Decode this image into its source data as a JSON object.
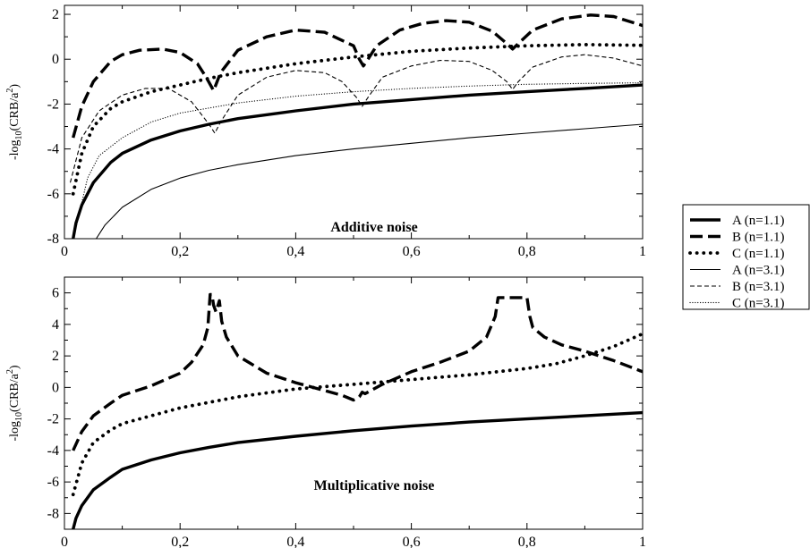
{
  "chart_data": [
    {
      "type": "line",
      "ylabel_prefix": "-log",
      "ylabel_sub": "10",
      "ylabel_mid": "(CRB/a",
      "ylabel_sup": "2",
      "ylabel_suffix": ")",
      "annotation": "Additive noise",
      "xlim": [
        0,
        1
      ],
      "ylim": [
        -8,
        2.4
      ],
      "x_ticks": [
        0,
        0.2,
        0.4,
        0.6,
        0.8,
        1
      ],
      "x_tick_labels": [
        "0",
        "0,2",
        "0,4",
        "0,6",
        "0,8",
        "1"
      ],
      "y_ticks": [
        -8,
        -6,
        -4,
        -2,
        0,
        2
      ],
      "y_tick_labels": [
        "-8",
        "-6",
        "-4",
        "-2",
        "0",
        "2"
      ],
      "grid": false,
      "series": [
        {
          "name": "A (n=1.1)",
          "style": "thick-solid",
          "x": [
            0.015,
            0.02,
            0.03,
            0.05,
            0.08,
            0.1,
            0.15,
            0.2,
            0.25,
            0.3,
            0.4,
            0.5,
            0.6,
            0.7,
            0.8,
            0.9,
            1.0
          ],
          "y": [
            -8.0,
            -7.3,
            -6.5,
            -5.5,
            -4.6,
            -4.2,
            -3.6,
            -3.2,
            -2.9,
            -2.65,
            -2.3,
            -2.0,
            -1.8,
            -1.6,
            -1.45,
            -1.3,
            -1.15
          ]
        },
        {
          "name": "B (n=1.1)",
          "style": "thick-dashed",
          "x": [
            0.015,
            0.03,
            0.05,
            0.08,
            0.1,
            0.13,
            0.17,
            0.2,
            0.23,
            0.245,
            0.258,
            0.27,
            0.3,
            0.35,
            0.4,
            0.45,
            0.5,
            0.51,
            0.517,
            0.525,
            0.54,
            0.58,
            0.62,
            0.66,
            0.7,
            0.74,
            0.765,
            0.775,
            0.785,
            0.81,
            0.86,
            0.91,
            0.95,
            1.0
          ],
          "y": [
            -3.5,
            -2.1,
            -1.0,
            -0.1,
            0.2,
            0.4,
            0.45,
            0.3,
            -0.2,
            -0.8,
            -1.4,
            -0.6,
            0.4,
            1.0,
            1.3,
            1.2,
            0.6,
            0.0,
            -0.3,
            0.0,
            0.6,
            1.3,
            1.6,
            1.72,
            1.65,
            1.25,
            0.7,
            0.45,
            0.7,
            1.3,
            1.8,
            1.97,
            1.9,
            1.5
          ]
        },
        {
          "name": "C (n=1.1)",
          "style": "thick-dotted",
          "x": [
            0.015,
            0.03,
            0.05,
            0.08,
            0.1,
            0.15,
            0.2,
            0.25,
            0.3,
            0.4,
            0.5,
            0.6,
            0.7,
            0.8,
            0.9,
            1.0
          ],
          "y": [
            -6.0,
            -4.2,
            -3.0,
            -2.2,
            -1.9,
            -1.45,
            -1.15,
            -0.85,
            -0.6,
            -0.2,
            0.1,
            0.35,
            0.5,
            0.6,
            0.65,
            0.62
          ]
        },
        {
          "name": "A (n=3.1)",
          "style": "thin-solid",
          "x": [
            0.055,
            0.07,
            0.1,
            0.15,
            0.2,
            0.25,
            0.3,
            0.4,
            0.5,
            0.6,
            0.7,
            0.8,
            0.9,
            1.0
          ],
          "y": [
            -8.0,
            -7.4,
            -6.6,
            -5.8,
            -5.3,
            -4.95,
            -4.7,
            -4.3,
            -4.0,
            -3.75,
            -3.5,
            -3.3,
            -3.1,
            -2.9
          ]
        },
        {
          "name": "B (n=3.1)",
          "style": "thin-dashed",
          "x": [
            0.01,
            0.03,
            0.06,
            0.1,
            0.14,
            0.18,
            0.22,
            0.25,
            0.26,
            0.27,
            0.3,
            0.35,
            0.4,
            0.45,
            0.48,
            0.505,
            0.515,
            0.525,
            0.55,
            0.6,
            0.65,
            0.7,
            0.74,
            0.765,
            0.775,
            0.785,
            0.81,
            0.86,
            0.9,
            0.95,
            1.0
          ],
          "y": [
            -5.5,
            -3.5,
            -2.3,
            -1.6,
            -1.3,
            -1.3,
            -1.9,
            -2.9,
            -3.3,
            -2.8,
            -1.6,
            -0.8,
            -0.5,
            -0.6,
            -1.0,
            -1.7,
            -2.1,
            -1.7,
            -0.8,
            -0.3,
            -0.05,
            -0.1,
            -0.5,
            -1.0,
            -1.35,
            -1.0,
            -0.35,
            0.1,
            0.2,
            0.05,
            -0.3
          ]
        },
        {
          "name": "C (n=3.1)",
          "style": "thin-dotted",
          "x": [
            0.02,
            0.04,
            0.06,
            0.1,
            0.15,
            0.2,
            0.3,
            0.4,
            0.5,
            0.6,
            0.7,
            0.8,
            0.9,
            1.0
          ],
          "y": [
            -7.5,
            -5.3,
            -4.3,
            -3.5,
            -2.8,
            -2.4,
            -1.95,
            -1.65,
            -1.45,
            -1.3,
            -1.2,
            -1.12,
            -1.08,
            -1.05
          ]
        }
      ]
    },
    {
      "type": "line",
      "ylabel_prefix": "-log",
      "ylabel_sub": "10",
      "ylabel_mid": "(CRB/a",
      "ylabel_sup": "2",
      "ylabel_suffix": ")",
      "annotation": "Multiplicative noise",
      "xlim": [
        0,
        1
      ],
      "ylim": [
        -9,
        7
      ],
      "x_ticks": [
        0,
        0.2,
        0.4,
        0.6,
        0.8,
        1
      ],
      "x_tick_labels": [
        "0",
        "0,2",
        "0,4",
        "0,6",
        "0,8",
        "1"
      ],
      "y_ticks": [
        -8,
        -6,
        -4,
        -2,
        0,
        2,
        4,
        6
      ],
      "y_tick_labels": [
        "-8",
        "-6",
        "-4",
        "-2",
        "0",
        "2",
        "4",
        "6"
      ],
      "grid": false,
      "series": [
        {
          "name": "A (n=1.1)",
          "style": "thick-solid",
          "x": [
            0.015,
            0.02,
            0.03,
            0.05,
            0.08,
            0.1,
            0.15,
            0.2,
            0.25,
            0.3,
            0.4,
            0.5,
            0.6,
            0.7,
            0.8,
            0.9,
            1.0
          ],
          "y": [
            -9.0,
            -8.3,
            -7.5,
            -6.5,
            -5.7,
            -5.2,
            -4.6,
            -4.15,
            -3.8,
            -3.5,
            -3.1,
            -2.75,
            -2.45,
            -2.2,
            -2.0,
            -1.8,
            -1.6
          ]
        },
        {
          "name": "B (n=1.1)",
          "style": "thick-dashed",
          "x": [
            0.015,
            0.03,
            0.05,
            0.08,
            0.1,
            0.15,
            0.2,
            0.22,
            0.24,
            0.248,
            0.252,
            0.255,
            0.258,
            0.262,
            0.268,
            0.272,
            0.28,
            0.3,
            0.35,
            0.4,
            0.45,
            0.48,
            0.5,
            0.51,
            0.515,
            0.52,
            0.53,
            0.55,
            0.6,
            0.65,
            0.7,
            0.73,
            0.745,
            0.75,
            0.8,
            0.805,
            0.81,
            0.83,
            0.86,
            0.9,
            0.95,
            1.0
          ],
          "y": [
            -4.0,
            -2.8,
            -1.8,
            -1.0,
            -0.5,
            0.1,
            0.9,
            1.6,
            2.7,
            3.8,
            5.9,
            5.9,
            5.2,
            4.8,
            5.5,
            4.2,
            3.2,
            2.0,
            0.9,
            0.3,
            -0.2,
            -0.5,
            -0.8,
            -0.6,
            -0.3,
            -0.4,
            -0.2,
            0.2,
            1.0,
            1.6,
            2.3,
            3.2,
            4.5,
            5.7,
            5.7,
            4.5,
            3.8,
            3.2,
            2.7,
            2.3,
            1.7,
            1.0
          ]
        },
        {
          "name": "C (n=1.1)",
          "style": "thick-dotted",
          "x": [
            0.015,
            0.03,
            0.05,
            0.08,
            0.1,
            0.15,
            0.2,
            0.3,
            0.4,
            0.5,
            0.6,
            0.7,
            0.8,
            0.85,
            0.9,
            0.95,
            1.0
          ],
          "y": [
            -6.8,
            -4.8,
            -3.5,
            -2.7,
            -2.3,
            -1.8,
            -1.3,
            -0.6,
            -0.1,
            0.2,
            0.5,
            0.8,
            1.2,
            1.5,
            2.0,
            2.6,
            3.4
          ]
        }
      ]
    }
  ],
  "legend": {
    "placement": "right",
    "entries": [
      {
        "label": "A (n=1.1)",
        "style": "thick-solid"
      },
      {
        "label": "B (n=1.1)",
        "style": "thick-dashed"
      },
      {
        "label": "C (n=1.1)",
        "style": "thick-dotted"
      },
      {
        "label": "A (n=3.1)",
        "style": "thin-solid"
      },
      {
        "label": "B (n=3.1)",
        "style": "thin-dashed"
      },
      {
        "label": "C (n=3.1)",
        "style": "thin-dotted"
      }
    ]
  },
  "colors": {
    "line": "#000000",
    "background": "#ffffff"
  }
}
